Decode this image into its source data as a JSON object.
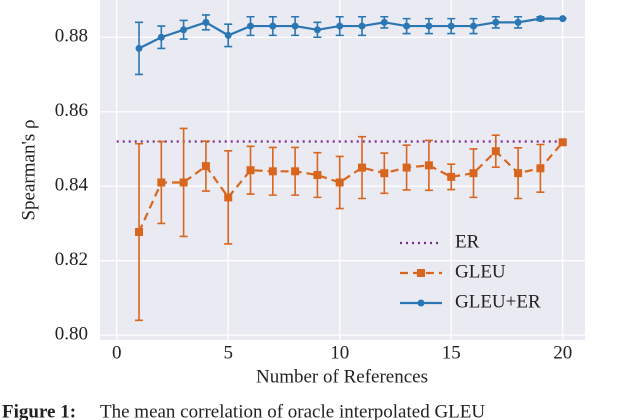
{
  "chart_data": {
    "type": "line",
    "xlabel": "Number of References",
    "ylabel": "Spearman's ρ",
    "xlim": [
      -0.75,
      21
    ],
    "ylim": [
      0.7987,
      0.89
    ],
    "xticks": [
      0,
      5,
      10,
      15,
      20
    ],
    "yticks": [
      {
        "value": 0.8,
        "label": "0.80"
      },
      {
        "value": 0.82,
        "label": "0.82"
      },
      {
        "value": 0.84,
        "label": "0.84"
      },
      {
        "value": 0.86,
        "label": "0.86"
      },
      {
        "value": 0.88,
        "label": "0.88"
      }
    ],
    "grid": true,
    "legend": "lower right",
    "series": [
      {
        "name": "ER",
        "color": "#7b2a8f",
        "style": "dotted",
        "x": [
          0,
          20
        ],
        "values": [
          0.852,
          0.852
        ]
      },
      {
        "name": "GLEU",
        "color": "#d9661f",
        "style": "dashed",
        "marker": "square",
        "x": [
          1,
          2,
          3,
          4,
          5,
          6,
          7,
          8,
          9,
          10,
          11,
          12,
          13,
          14,
          15,
          16,
          17,
          18,
          19,
          20
        ],
        "values": [
          0.8277,
          0.841,
          0.841,
          0.8454,
          0.837,
          0.8443,
          0.844,
          0.844,
          0.843,
          0.841,
          0.845,
          0.8435,
          0.845,
          0.8456,
          0.8425,
          0.8435,
          0.8494,
          0.8435,
          0.8448,
          0.8518
        ],
        "errors": [
          0.0237,
          0.011,
          0.0145,
          0.0067,
          0.0125,
          0.0064,
          0.0064,
          0.0064,
          0.006,
          0.007,
          0.0083,
          0.0054,
          0.006,
          0.0067,
          0.0034,
          0.0065,
          0.0043,
          0.0068,
          0.0064,
          0
        ]
      },
      {
        "name": "GLEU+ER",
        "color": "#2a77b4",
        "style": "solid",
        "marker": "circle",
        "x": [
          1,
          2,
          3,
          4,
          5,
          6,
          7,
          8,
          9,
          10,
          11,
          12,
          13,
          14,
          15,
          16,
          17,
          18,
          19,
          20
        ],
        "values": [
          0.877,
          0.88,
          0.882,
          0.884,
          0.8805,
          0.883,
          0.883,
          0.883,
          0.882,
          0.883,
          0.883,
          0.884,
          0.883,
          0.883,
          0.883,
          0.883,
          0.884,
          0.884,
          0.885,
          0.885
        ],
        "errors": [
          0.007,
          0.003,
          0.0025,
          0.002,
          0.003,
          0.0025,
          0.0025,
          0.0025,
          0.002,
          0.0025,
          0.0025,
          0.0015,
          0.002,
          0.002,
          0.002,
          0.002,
          0.0015,
          0.0015,
          0.0005,
          0
        ]
      }
    ]
  },
  "caption": {
    "label": "Figure 1:",
    "text": "The mean correlation of oracle interpolated GLEU"
  }
}
